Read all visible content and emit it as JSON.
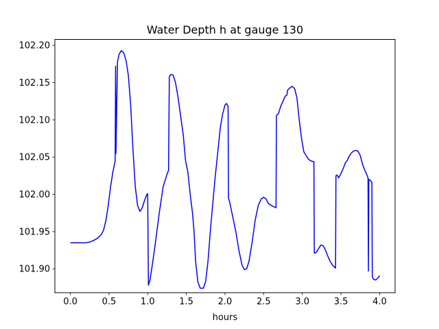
{
  "chart_data": {
    "type": "line",
    "title": "Water Depth h at gauge 130",
    "xlabel": "hours",
    "ylabel": "",
    "xlim": [
      -0.2,
      4.2
    ],
    "ylim": [
      101.868,
      102.208
    ],
    "grid": false,
    "xticks": [
      0.0,
      0.5,
      1.0,
      1.5,
      2.0,
      2.5,
      3.0,
      3.5,
      4.0
    ],
    "xtick_labels": [
      "0.0",
      "0.5",
      "1.0",
      "1.5",
      "2.0",
      "2.5",
      "3.0",
      "3.5",
      "4.0"
    ],
    "yticks": [
      101.9,
      101.95,
      102.0,
      102.05,
      102.1,
      102.15,
      102.2
    ],
    "ytick_labels": [
      "101.90",
      "101.95",
      "102.00",
      "102.05",
      "102.10",
      "102.15",
      "102.20"
    ],
    "series": [
      {
        "color": "#0000ff",
        "points": [
          [
            0.0,
            101.935
          ],
          [
            0.1,
            101.935
          ],
          [
            0.2,
            101.935
          ],
          [
            0.25,
            101.936
          ],
          [
            0.3,
            101.938
          ],
          [
            0.35,
            101.941
          ],
          [
            0.4,
            101.946
          ],
          [
            0.43,
            101.952
          ],
          [
            0.46,
            101.965
          ],
          [
            0.49,
            101.985
          ],
          [
            0.52,
            102.01
          ],
          [
            0.55,
            102.03
          ],
          [
            0.58,
            102.045
          ],
          [
            0.585,
            102.172
          ],
          [
            0.59,
            102.055
          ],
          [
            0.6,
            102.12
          ],
          [
            0.61,
            102.178
          ],
          [
            0.63,
            102.188
          ],
          [
            0.66,
            102.193
          ],
          [
            0.69,
            102.19
          ],
          [
            0.72,
            102.18
          ],
          [
            0.75,
            102.16
          ],
          [
            0.78,
            102.12
          ],
          [
            0.81,
            102.06
          ],
          [
            0.84,
            102.01
          ],
          [
            0.87,
            101.985
          ],
          [
            0.9,
            101.977
          ],
          [
            0.93,
            101.982
          ],
          [
            0.96,
            101.992
          ],
          [
            0.99,
            102.0
          ],
          [
            1.0,
            102.001
          ],
          [
            1.01,
            101.878
          ],
          [
            1.03,
            101.885
          ],
          [
            1.06,
            101.905
          ],
          [
            1.1,
            101.935
          ],
          [
            1.15,
            101.975
          ],
          [
            1.2,
            102.01
          ],
          [
            1.25,
            102.027
          ],
          [
            1.27,
            102.032
          ],
          [
            1.28,
            102.158
          ],
          [
            1.3,
            102.161
          ],
          [
            1.33,
            102.16
          ],
          [
            1.36,
            102.15
          ],
          [
            1.39,
            102.132
          ],
          [
            1.42,
            102.11
          ],
          [
            1.46,
            102.08
          ],
          [
            1.49,
            102.045
          ],
          [
            1.52,
            102.03
          ],
          [
            1.55,
            102.0
          ],
          [
            1.58,
            101.975
          ],
          [
            1.6,
            101.95
          ],
          [
            1.62,
            101.91
          ],
          [
            1.65,
            101.882
          ],
          [
            1.68,
            101.874
          ],
          [
            1.72,
            101.874
          ],
          [
            1.75,
            101.883
          ],
          [
            1.78,
            101.91
          ],
          [
            1.81,
            101.95
          ],
          [
            1.84,
            101.985
          ],
          [
            1.87,
            102.02
          ],
          [
            1.91,
            102.06
          ],
          [
            1.94,
            102.09
          ],
          [
            1.97,
            102.108
          ],
          [
            2.0,
            102.12
          ],
          [
            2.02,
            102.122
          ],
          [
            2.04,
            102.118
          ],
          [
            2.045,
            101.995
          ],
          [
            2.06,
            101.99
          ],
          [
            2.1,
            101.97
          ],
          [
            2.14,
            101.95
          ],
          [
            2.18,
            101.925
          ],
          [
            2.22,
            101.905
          ],
          [
            2.25,
            101.899
          ],
          [
            2.28,
            101.9
          ],
          [
            2.31,
            101.91
          ],
          [
            2.35,
            101.935
          ],
          [
            2.39,
            101.965
          ],
          [
            2.43,
            101.985
          ],
          [
            2.47,
            101.994
          ],
          [
            2.5,
            101.996
          ],
          [
            2.53,
            101.994
          ],
          [
            2.56,
            101.988
          ],
          [
            2.6,
            101.985
          ],
          [
            2.64,
            101.983
          ],
          [
            2.66,
            101.982
          ],
          [
            2.665,
            102.106
          ],
          [
            2.69,
            102.108
          ],
          [
            2.72,
            102.118
          ],
          [
            2.75,
            102.125
          ],
          [
            2.78,
            102.132
          ],
          [
            2.8,
            102.133
          ],
          [
            2.81,
            102.14
          ],
          [
            2.84,
            102.143
          ],
          [
            2.87,
            102.145
          ],
          [
            2.9,
            102.142
          ],
          [
            2.93,
            102.13
          ],
          [
            2.96,
            102.1
          ],
          [
            2.99,
            102.075
          ],
          [
            3.02,
            102.057
          ],
          [
            3.05,
            102.052
          ],
          [
            3.08,
            102.047
          ],
          [
            3.11,
            102.045
          ],
          [
            3.14,
            102.044
          ],
          [
            3.15,
            102.044
          ],
          [
            3.155,
            101.921
          ],
          [
            3.18,
            101.922
          ],
          [
            3.21,
            101.927
          ],
          [
            3.24,
            101.932
          ],
          [
            3.27,
            101.931
          ],
          [
            3.3,
            101.925
          ],
          [
            3.33,
            101.917
          ],
          [
            3.36,
            101.91
          ],
          [
            3.39,
            101.905
          ],
          [
            3.42,
            101.902
          ],
          [
            3.43,
            101.901
          ],
          [
            3.435,
            102.025
          ],
          [
            3.45,
            102.026
          ],
          [
            3.47,
            102.022
          ],
          [
            3.5,
            102.028
          ],
          [
            3.53,
            102.035
          ],
          [
            3.56,
            102.043
          ],
          [
            3.58,
            102.045
          ],
          [
            3.6,
            102.05
          ],
          [
            3.63,
            102.055
          ],
          [
            3.66,
            102.058
          ],
          [
            3.69,
            102.059
          ],
          [
            3.72,
            102.058
          ],
          [
            3.75,
            102.052
          ],
          [
            3.78,
            102.04
          ],
          [
            3.81,
            102.032
          ],
          [
            3.84,
            102.025
          ],
          [
            3.85,
            102.022
          ],
          [
            3.855,
            101.897
          ],
          [
            3.86,
            102.02
          ],
          [
            3.88,
            102.019
          ],
          [
            3.9,
            102.016
          ],
          [
            3.905,
            101.89
          ],
          [
            3.92,
            101.886
          ],
          [
            3.95,
            101.885
          ],
          [
            3.98,
            101.888
          ],
          [
            4.0,
            101.891
          ]
        ]
      }
    ]
  }
}
